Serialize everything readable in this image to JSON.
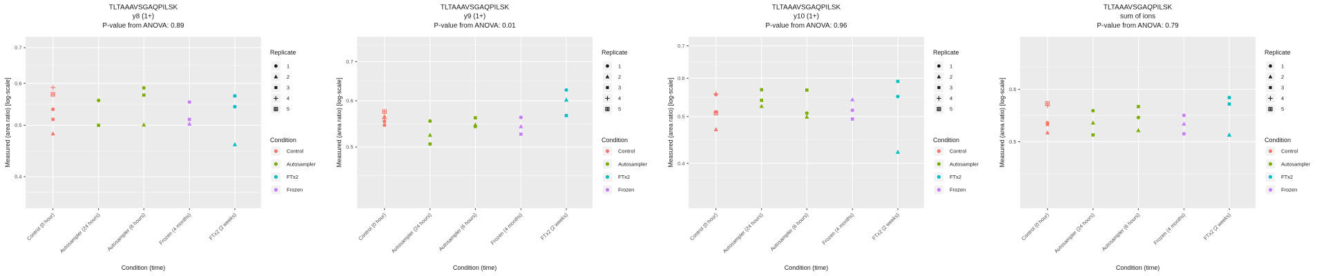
{
  "figure": {
    "peptide": "TLTAAAVSGAQPILSK",
    "x_axis_title": "Condition (time)",
    "y_axis_title": "Measured (area ratio) [log-scale]",
    "categories": [
      "Control (0 hour)",
      "Autosampler (24 hours)",
      "Autosampler (6 hours)",
      "Frozen (4 months)",
      "FTx2 (2 weeks)"
    ],
    "legend": {
      "replicate_title": "Replicate",
      "replicates": [
        {
          "label": "1",
          "shape": "circle"
        },
        {
          "label": "2",
          "shape": "triangle"
        },
        {
          "label": "3",
          "shape": "square"
        },
        {
          "label": "4",
          "shape": "plus"
        },
        {
          "label": "5",
          "shape": "square-plus"
        }
      ],
      "condition_title": "Condition",
      "conditions": [
        {
          "label": "Control",
          "color": "#F8766D"
        },
        {
          "label": "Autosampler",
          "color": "#7CAE00"
        },
        {
          "label": "FTx2",
          "color": "#00BFC4"
        },
        {
          "label": "Frozen",
          "color": "#C77CFF"
        }
      ]
    },
    "style": {
      "panel_background": "#EBEBEB",
      "major_grid": "#FFFFFF",
      "minor_grid_opacity": 0.55,
      "tick_label_color": "#4D4D4D",
      "text_color": "#1A1A1A",
      "legend_key_fill": "#F2F2F2"
    }
  },
  "chart_data": [
    {
      "type": "scatter",
      "title_lines": [
        "TLTAAAVSGAQPILSK",
        "y8 (1+)",
        "P-value from ANOVA: 0.89"
      ],
      "ion": "y8 (1+)",
      "anova_p": "0.89",
      "y_log_scale": true,
      "ylim": [
        0.349,
        0.734
      ],
      "yticks": [
        "0.4",
        "0.5",
        "0.6",
        "0.7"
      ],
      "yminor": [
        0.374,
        0.447,
        0.548,
        0.648
      ],
      "points": [
        {
          "x": "Control (0 hour)",
          "condition": "Control",
          "replicate": 4,
          "y": 0.589
        },
        {
          "x": "Control (0 hour)",
          "condition": "Control",
          "replicate": 5,
          "y": 0.572
        },
        {
          "x": "Control (0 hour)",
          "condition": "Control",
          "replicate": 1,
          "y": 0.536
        },
        {
          "x": "Control (0 hour)",
          "condition": "Control",
          "replicate": 3,
          "y": 0.513
        },
        {
          "x": "Control (0 hour)",
          "condition": "Control",
          "replicate": 2,
          "y": 0.482
        },
        {
          "x": "Autosampler (24 hours)",
          "condition": "Autosampler",
          "replicate": 1,
          "y": 0.557
        },
        {
          "x": "Autosampler (24 hours)",
          "condition": "Autosampler",
          "replicate": 3,
          "y": 0.5
        },
        {
          "x": "Autosampler (6 hours)",
          "condition": "Autosampler",
          "replicate": 1,
          "y": 0.588
        },
        {
          "x": "Autosampler (6 hours)",
          "condition": "Autosampler",
          "replicate": 3,
          "y": 0.57
        },
        {
          "x": "Autosampler (6 hours)",
          "condition": "Autosampler",
          "replicate": 2,
          "y": 0.501
        },
        {
          "x": "Frozen (4 months)",
          "condition": "Frozen",
          "replicate": 1,
          "y": 0.553
        },
        {
          "x": "Frozen (4 months)",
          "condition": "Frozen",
          "replicate": 3,
          "y": 0.513
        },
        {
          "x": "Frozen (4 months)",
          "condition": "Frozen",
          "replicate": 2,
          "y": 0.503
        },
        {
          "x": "FTx2 (2 weeks)",
          "condition": "FTx2",
          "replicate": 3,
          "y": 0.568
        },
        {
          "x": "FTx2 (2 weeks)",
          "condition": "FTx2",
          "replicate": 1,
          "y": 0.542
        },
        {
          "x": "FTx2 (2 weeks)",
          "condition": "FTx2",
          "replicate": 2,
          "y": 0.46
        }
      ]
    },
    {
      "type": "scatter",
      "title_lines": [
        "TLTAAAVSGAQPILSK",
        "y9 (1+)",
        "P-value from ANOVA: 0.01"
      ],
      "ion": "y9 (1+)",
      "anova_p": "0.01",
      "y_log_scale": true,
      "ylim": [
        0.393,
        0.772
      ],
      "yticks": [
        "0.5",
        "0.6",
        "0.7"
      ],
      "yminor": [
        0.447,
        0.548,
        0.648,
        0.748
      ],
      "points": [
        {
          "x": "Control (0 hour)",
          "condition": "Control",
          "replicate": 5,
          "y": 0.575
        },
        {
          "x": "Control (0 hour)",
          "condition": "Control",
          "replicate": 2,
          "y": 0.564
        },
        {
          "x": "Control (0 hour)",
          "condition": "Control",
          "replicate": 4,
          "y": 0.559
        },
        {
          "x": "Control (0 hour)",
          "condition": "Control",
          "replicate": 3,
          "y": 0.553
        },
        {
          "x": "Control (0 hour)",
          "condition": "Control",
          "replicate": 1,
          "y": 0.545
        },
        {
          "x": "Autosampler (24 hours)",
          "condition": "Autosampler",
          "replicate": 1,
          "y": 0.554
        },
        {
          "x": "Autosampler (24 hours)",
          "condition": "Autosampler",
          "replicate": 2,
          "y": 0.524
        },
        {
          "x": "Autosampler (24 hours)",
          "condition": "Autosampler",
          "replicate": 3,
          "y": 0.506
        },
        {
          "x": "Autosampler (6 hours)",
          "condition": "Autosampler",
          "replicate": 3,
          "y": 0.561
        },
        {
          "x": "Autosampler (6 hours)",
          "condition": "Autosampler",
          "replicate": 2,
          "y": 0.546
        },
        {
          "x": "Autosampler (6 hours)",
          "condition": "Autosampler",
          "replicate": 1,
          "y": 0.542
        },
        {
          "x": "Frozen (4 months)",
          "condition": "Frozen",
          "replicate": 1,
          "y": 0.562
        },
        {
          "x": "Frozen (4 months)",
          "condition": "Frozen",
          "replicate": 2,
          "y": 0.542
        },
        {
          "x": "Frozen (4 months)",
          "condition": "Frozen",
          "replicate": 3,
          "y": 0.526
        },
        {
          "x": "FTx2 (2 weeks)",
          "condition": "FTx2",
          "replicate": 1,
          "y": 0.626
        },
        {
          "x": "FTx2 (2 weeks)",
          "condition": "FTx2",
          "replicate": 2,
          "y": 0.602
        },
        {
          "x": "FTx2 (2 weeks)",
          "condition": "FTx2",
          "replicate": 3,
          "y": 0.566
        }
      ]
    },
    {
      "type": "scatter",
      "title_lines": [
        "TLTAAAVSGAQPILSK",
        "y10 (1+)",
        "P-value from ANOVA: 0.96"
      ],
      "ion": "y10 (1+)",
      "anova_p": "0.96",
      "y_log_scale": true,
      "ylim": [
        0.323,
        0.731
      ],
      "yticks": [
        "0.4",
        "0.5",
        "0.6",
        "0.7"
      ],
      "yminor": [
        0.374,
        0.447,
        0.548,
        0.648
      ],
      "points": [
        {
          "x": "Control (0 hour)",
          "condition": "Control",
          "replicate": 4,
          "y": 0.557
        },
        {
          "x": "Control (0 hour)",
          "condition": "Control",
          "replicate": 1,
          "y": 0.555
        },
        {
          "x": "Control (0 hour)",
          "condition": "Control",
          "replicate": 3,
          "y": 0.511
        },
        {
          "x": "Control (0 hour)",
          "condition": "Control",
          "replicate": 5,
          "y": 0.508
        },
        {
          "x": "Control (0 hour)",
          "condition": "Control",
          "replicate": 2,
          "y": 0.47
        },
        {
          "x": "Autosampler (24 hours)",
          "condition": "Autosampler",
          "replicate": 1,
          "y": 0.568
        },
        {
          "x": "Autosampler (24 hours)",
          "condition": "Autosampler",
          "replicate": 3,
          "y": 0.54
        },
        {
          "x": "Autosampler (24 hours)",
          "condition": "Autosampler",
          "replicate": 2,
          "y": 0.525
        },
        {
          "x": "Autosampler (6 hours)",
          "condition": "Autosampler",
          "replicate": 3,
          "y": 0.567
        },
        {
          "x": "Autosampler (6 hours)",
          "condition": "Autosampler",
          "replicate": 1,
          "y": 0.508
        },
        {
          "x": "Autosampler (6 hours)",
          "condition": "Autosampler",
          "replicate": 2,
          "y": 0.499
        },
        {
          "x": "Frozen (4 months)",
          "condition": "Frozen",
          "replicate": 2,
          "y": 0.542
        },
        {
          "x": "Frozen (4 months)",
          "condition": "Frozen",
          "replicate": 1,
          "y": 0.515
        },
        {
          "x": "Frozen (4 months)",
          "condition": "Frozen",
          "replicate": 3,
          "y": 0.494
        },
        {
          "x": "FTx2 (2 weeks)",
          "condition": "FTx2",
          "replicate": 3,
          "y": 0.591
        },
        {
          "x": "FTx2 (2 weeks)",
          "condition": "FTx2",
          "replicate": 1,
          "y": 0.55
        },
        {
          "x": "FTx2 (2 weeks)",
          "condition": "FTx2",
          "replicate": 2,
          "y": 0.422
        }
      ]
    },
    {
      "type": "scatter",
      "title_lines": [
        "TLTAAAVSGAQPILSK",
        "sum of ions",
        "P-value from ANOVA: 0.79"
      ],
      "ion": "sum of ions",
      "anova_p": "0.79",
      "y_log_scale": true,
      "ylim": [
        0.397,
        0.72
      ],
      "yticks": [
        "0.5",
        "0.6"
      ],
      "yminor": [
        0.447,
        0.548,
        0.648
      ],
      "points": [
        {
          "x": "Control (0 hour)",
          "condition": "Control",
          "replicate": 5,
          "y": 0.571
        },
        {
          "x": "Control (0 hour)",
          "condition": "Control",
          "replicate": 4,
          "y": 0.567
        },
        {
          "x": "Control (0 hour)",
          "condition": "Control",
          "replicate": 1,
          "y": 0.534
        },
        {
          "x": "Control (0 hour)",
          "condition": "Control",
          "replicate": 3,
          "y": 0.531
        },
        {
          "x": "Control (0 hour)",
          "condition": "Control",
          "replicate": 2,
          "y": 0.516
        },
        {
          "x": "Autosampler (24 hours)",
          "condition": "Autosampler",
          "replicate": 1,
          "y": 0.557
        },
        {
          "x": "Autosampler (24 hours)",
          "condition": "Autosampler",
          "replicate": 2,
          "y": 0.534
        },
        {
          "x": "Autosampler (24 hours)",
          "condition": "Autosampler",
          "replicate": 3,
          "y": 0.512
        },
        {
          "x": "Autosampler (6 hours)",
          "condition": "Autosampler",
          "replicate": 3,
          "y": 0.565
        },
        {
          "x": "Autosampler (6 hours)",
          "condition": "Autosampler",
          "replicate": 1,
          "y": 0.544
        },
        {
          "x": "Autosampler (6 hours)",
          "condition": "Autosampler",
          "replicate": 2,
          "y": 0.52
        },
        {
          "x": "Frozen (4 months)",
          "condition": "Frozen",
          "replicate": 1,
          "y": 0.548
        },
        {
          "x": "Frozen (4 months)",
          "condition": "Frozen",
          "replicate": 2,
          "y": 0.532
        },
        {
          "x": "Frozen (4 months)",
          "condition": "Frozen",
          "replicate": 3,
          "y": 0.514
        },
        {
          "x": "FTx2 (2 weeks)",
          "condition": "FTx2",
          "replicate": 1,
          "y": 0.583
        },
        {
          "x": "FTx2 (2 weeks)",
          "condition": "FTx2",
          "replicate": 3,
          "y": 0.57
        },
        {
          "x": "FTx2 (2 weeks)",
          "condition": "FTx2",
          "replicate": 2,
          "y": 0.512
        }
      ]
    }
  ]
}
